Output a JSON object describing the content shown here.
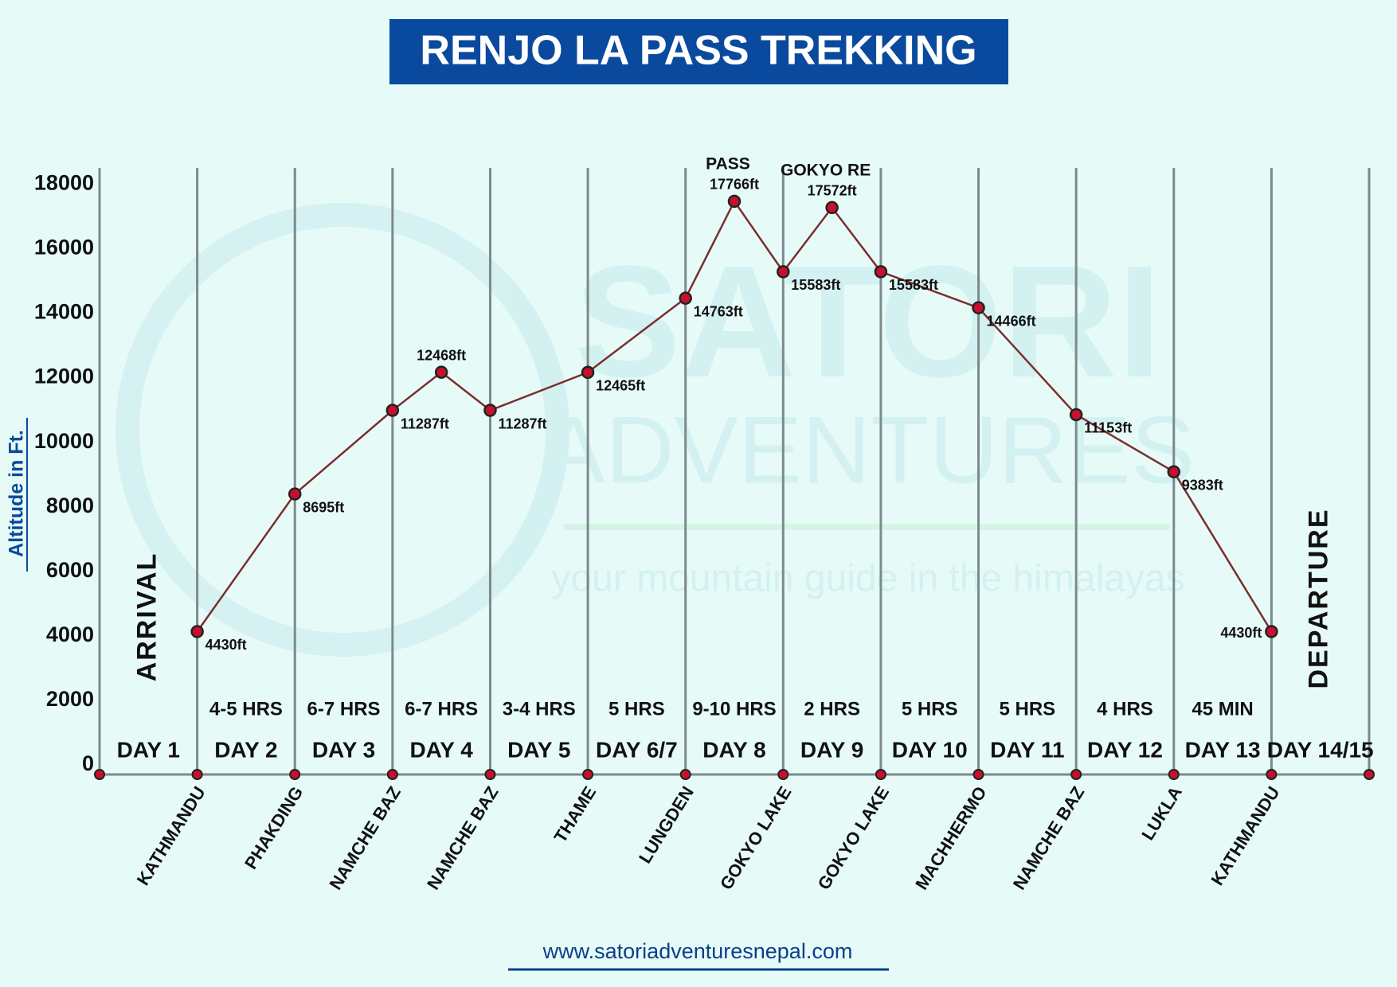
{
  "chart_data": {
    "type": "line",
    "title": "RENJO LA PASS TREKKING",
    "ylabel": "Altitude in Ft.",
    "categories": [
      "KATHMANDU",
      "PHAKDING",
      "NAMCHE BAZ",
      null,
      "NAMCHE BAZ",
      "THAME",
      "LUNGDEN",
      null,
      "GOKYO LAKE",
      null,
      "GOKYO LAKE",
      "MACHHERMO",
      "NAMCHE BAZ",
      "LUKLA",
      "KATHMANDU"
    ],
    "values": [
      4430,
      8695,
      11287,
      12468,
      11287,
      12465,
      14763,
      17766,
      15583,
      17572,
      15583,
      14466,
      11153,
      9383,
      4430
    ],
    "value_labels": [
      "4430ft",
      "8695ft",
      "11287ft",
      "12468ft",
      "11287ft",
      "12465ft",
      "14763ft",
      "17766ft",
      "15583ft",
      "17572ft",
      "15583ft",
      "14466ft",
      "11153ft",
      "9383ft",
      "4430ft"
    ],
    "point_labels": [
      null,
      null,
      null,
      null,
      null,
      null,
      null,
      "PASS",
      null,
      "GOKYO RE",
      null,
      null,
      null,
      null,
      null
    ],
    "days": [
      "DAY 1",
      "DAY 2",
      "DAY 3",
      "DAY 4",
      "DAY 5",
      "DAY 6/7",
      "DAY 8",
      "DAY 9",
      "DAY 10",
      "DAY 11",
      "DAY 12",
      "DAY 13",
      "DAY 14/15"
    ],
    "durations": [
      null,
      "4-5 HRS",
      "6-7 HRS",
      "6-7 HRS",
      "3-4 HRS",
      "5 HRS",
      "9-10 HRS",
      "2 HRS",
      "5 HRS",
      "5 HRS",
      "4 HRS",
      "45 MIN",
      null
    ],
    "arrival": "ARRIVAL",
    "departure": "DEPARTURE",
    "ylim": [
      0,
      18800
    ],
    "yticks": [
      0,
      2000,
      4000,
      6000,
      8000,
      10000,
      12000,
      14000,
      16000,
      18000
    ],
    "line_color": "#7a2e2e",
    "point_color": "#c8102e",
    "website": "www.satoriadventuresnepal.com",
    "watermark": [
      "SATORI",
      "ADVENTURES",
      "your mountain guide in the himalayas"
    ]
  }
}
